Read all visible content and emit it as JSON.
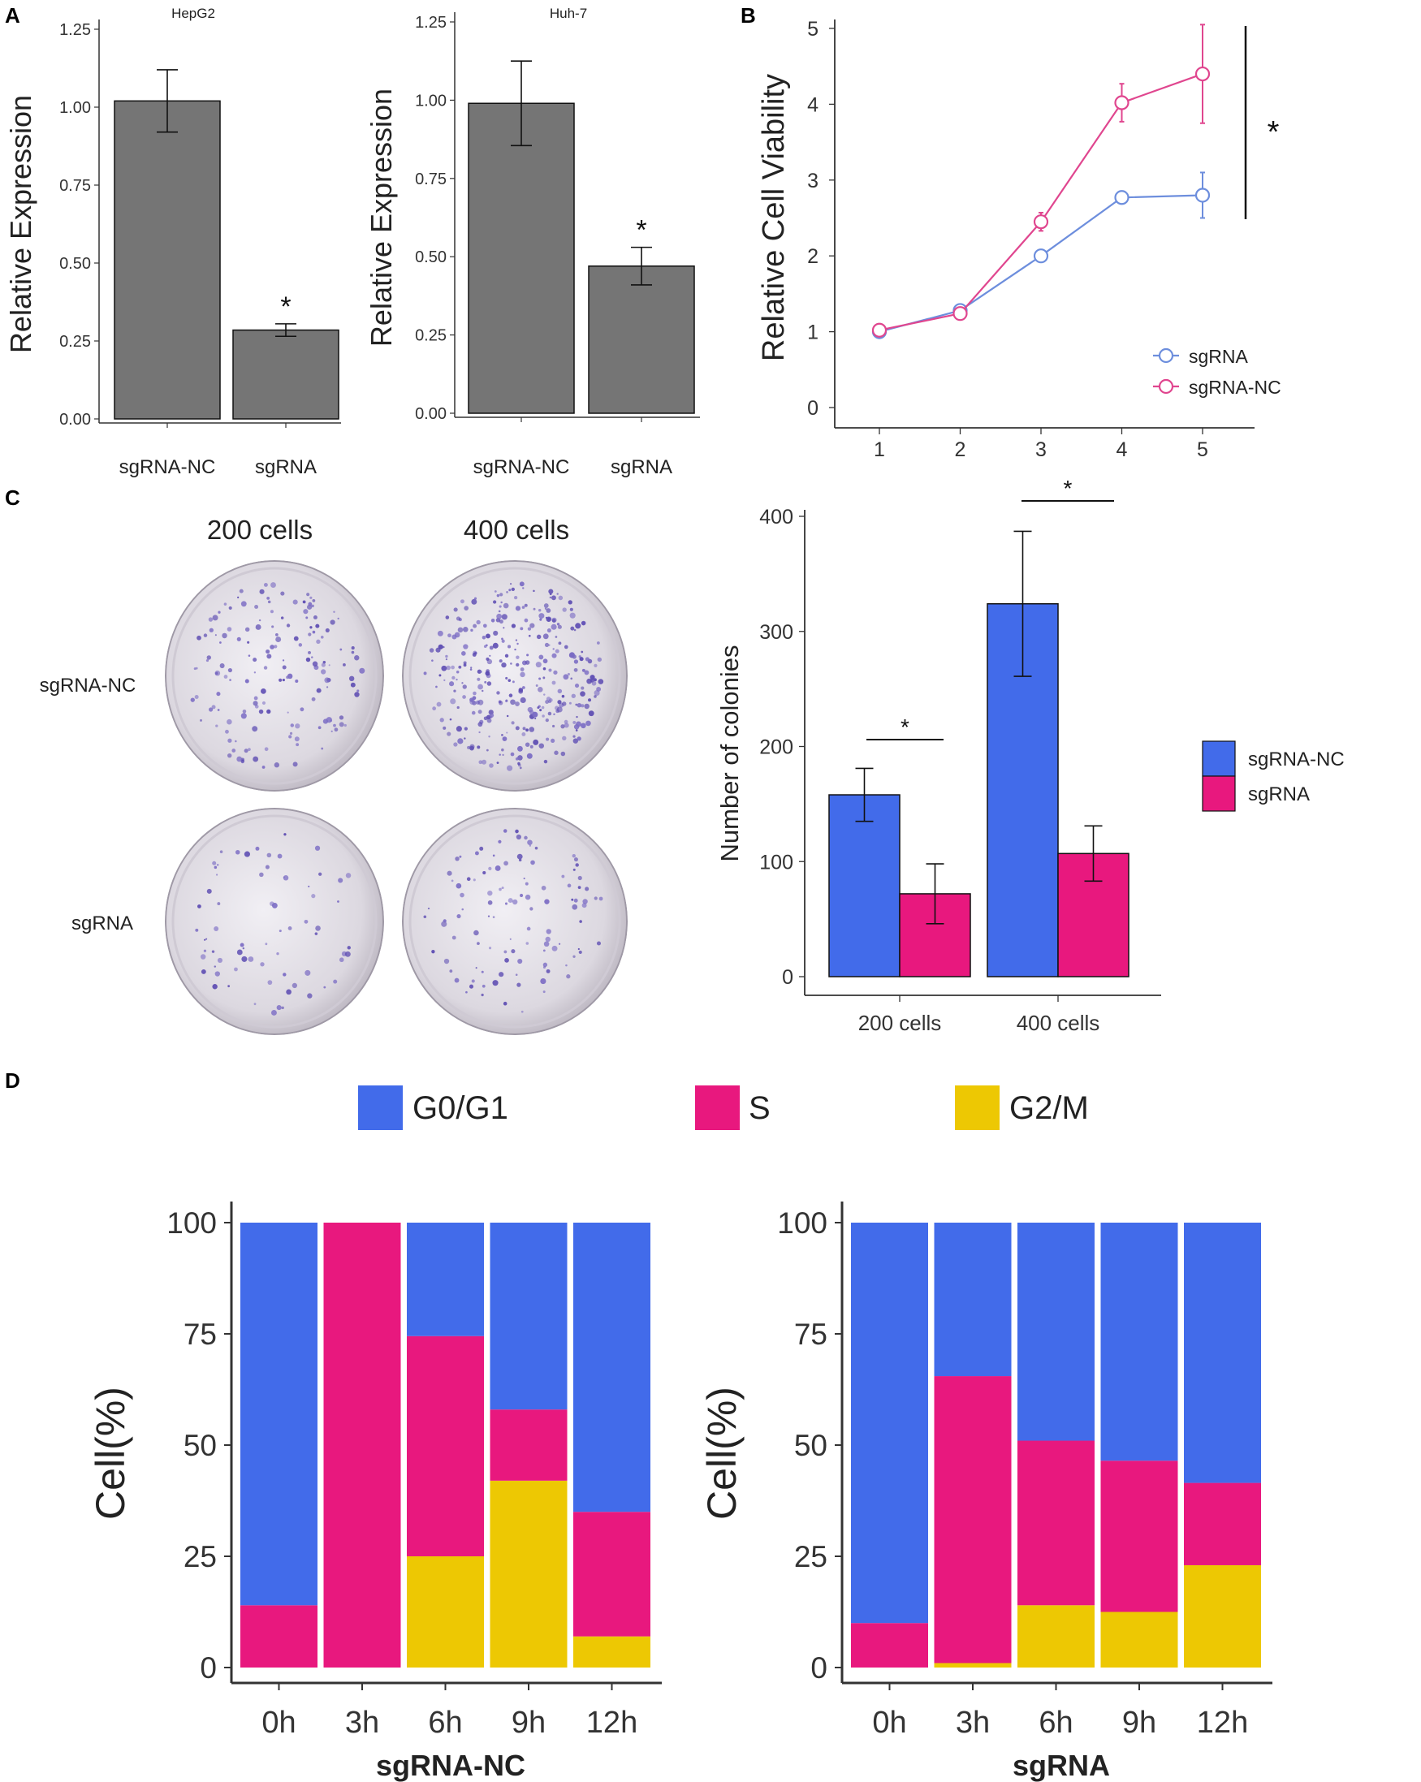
{
  "colors": {
    "dark_bar": "#757575",
    "blue": "#426BEA",
    "magenta": "#E8187E",
    "yellow": "#EDC803",
    "line_blue": "#6D8EDD",
    "line_pink": "#E0468F",
    "axis": "#333333"
  },
  "panels": {
    "A": "A",
    "B": "B",
    "C": "C",
    "D": "D"
  },
  "chart_data": [
    {
      "id": "a1",
      "type": "bar",
      "title": "HepG2",
      "ylabel": "Relative Expression",
      "xlabel": "",
      "categories": [
        "sgRNA-NC",
        "sgRNA"
      ],
      "values": [
        1.02,
        0.285
      ],
      "errors": [
        0.1,
        0.02
      ],
      "ylim": [
        0,
        1.25
      ],
      "yticks": [
        "0.00",
        "0.25",
        "0.50",
        "0.75",
        "1.00",
        "1.25"
      ],
      "annotations": [
        {
          "text": "*",
          "category": "sgRNA"
        }
      ]
    },
    {
      "id": "a2",
      "type": "bar",
      "title": "Huh-7",
      "ylabel": "Relative Expression",
      "xlabel": "",
      "categories": [
        "sgRNA-NC",
        "sgRNA"
      ],
      "values": [
        0.99,
        0.47
      ],
      "errors": [
        0.135,
        0.06
      ],
      "ylim": [
        0,
        1.25
      ],
      "yticks": [
        "0.00",
        "0.25",
        "0.50",
        "0.75",
        "1.00",
        "1.25"
      ],
      "annotations": [
        {
          "text": "*",
          "category": "sgRNA"
        }
      ]
    },
    {
      "id": "b",
      "type": "line",
      "ylabel": "Relative Cell Viability",
      "xlabel": "",
      "x": [
        1,
        2,
        3,
        4,
        5
      ],
      "xlim": [
        0.5,
        5.5
      ],
      "ylim": [
        0,
        5
      ],
      "xticks": [
        "1",
        "2",
        "3",
        "4",
        "5"
      ],
      "yticks": [
        "0",
        "1",
        "2",
        "3",
        "4",
        "5"
      ],
      "series": [
        {
          "name": "sgRNA",
          "values": [
            1.0,
            1.28,
            2.0,
            2.77,
            2.8
          ],
          "errors": [
            0.03,
            0.05,
            0.05,
            0.05,
            0.3
          ]
        },
        {
          "name": "sgRNA-NC",
          "values": [
            1.02,
            1.24,
            2.45,
            4.02,
            4.4
          ],
          "errors": [
            0.03,
            0.05,
            0.12,
            0.25,
            0.65
          ]
        }
      ],
      "legend": "bottom-right",
      "annotations": [
        {
          "text": "*"
        }
      ]
    },
    {
      "id": "c",
      "type": "bar",
      "ylabel": "Number of colonies",
      "xlabel": "",
      "categories": [
        "200 cells",
        "400 cells"
      ],
      "ylim": [
        0,
        400
      ],
      "yticks": [
        "0",
        "100",
        "200",
        "300",
        "400"
      ],
      "series": [
        {
          "name": "sgRNA-NC",
          "values": [
            158,
            324
          ],
          "errors": [
            23,
            63
          ]
        },
        {
          "name": "sgRNA",
          "values": [
            72,
            107
          ],
          "errors": [
            26,
            24
          ]
        }
      ],
      "legend": "right",
      "annotations": [
        {
          "text": "*",
          "category": "200 cells"
        },
        {
          "text": "*",
          "category": "400 cells"
        }
      ]
    },
    {
      "id": "d1",
      "type": "bar",
      "stacked": true,
      "ylabel": "Cell(%)",
      "xlabel": "sgRNA-NC",
      "categories": [
        "0h",
        "3h",
        "6h",
        "9h",
        "12h"
      ],
      "ylim": [
        0,
        100
      ],
      "yticks": [
        "0",
        "25",
        "50",
        "75",
        "100"
      ],
      "series": [
        {
          "name": "G2/M",
          "values": [
            0,
            0,
            25,
            42,
            7
          ]
        },
        {
          "name": "S",
          "values": [
            14,
            100,
            49.5,
            16,
            28
          ]
        },
        {
          "name": "G0/G1",
          "values": [
            86,
            0,
            25.5,
            42,
            65
          ]
        }
      ]
    },
    {
      "id": "d2",
      "type": "bar",
      "stacked": true,
      "ylabel": "Cell(%)",
      "xlabel": "sgRNA",
      "categories": [
        "0h",
        "3h",
        "6h",
        "9h",
        "12h"
      ],
      "ylim": [
        0,
        100
      ],
      "yticks": [
        "0",
        "25",
        "50",
        "75",
        "100"
      ],
      "series": [
        {
          "name": "G2/M",
          "values": [
            0,
            1,
            14,
            12.5,
            23
          ]
        },
        {
          "name": "S",
          "values": [
            10,
            64.5,
            37,
            34,
            18.5
          ]
        },
        {
          "name": "G0/G1",
          "values": [
            90,
            34.5,
            49,
            53.5,
            58.5
          ]
        }
      ]
    }
  ],
  "legend_d": [
    "G0/G1",
    "S",
    "G2/M"
  ],
  "colony_photo": {
    "columns": [
      "200 cells",
      "400 cells"
    ],
    "rows": [
      "sgRNA-NC",
      "sgRNA"
    ]
  }
}
